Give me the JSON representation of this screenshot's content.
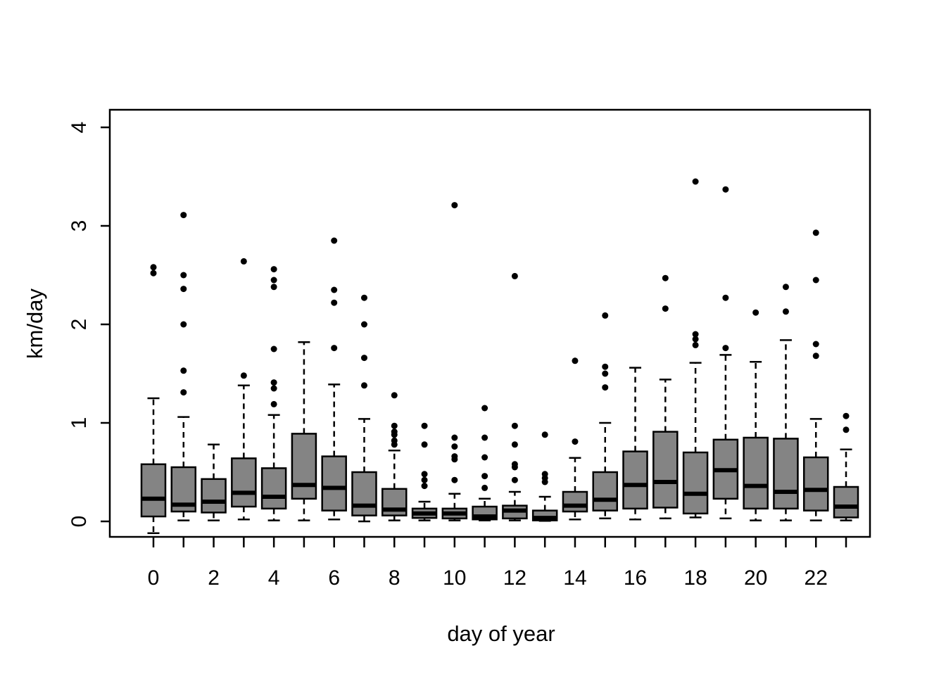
{
  "chart_data": {
    "type": "boxplot",
    "title": "",
    "xlabel": "day of year",
    "ylabel": "km/day",
    "y_ticks": [
      "0",
      "1",
      "2",
      "3",
      "4"
    ],
    "y_tick_values": [
      0,
      1,
      2,
      3,
      4
    ],
    "ylim": [
      -0.16,
      4.17
    ],
    "x_tick_labels": [
      "0",
      "2",
      "4",
      "6",
      "8",
      "10",
      "12",
      "14",
      "16",
      "18",
      "20",
      "22"
    ],
    "x_tick_label_positions": [
      0,
      2,
      4,
      6,
      8,
      10,
      12,
      14,
      16,
      18,
      20,
      22
    ],
    "grid": false,
    "legend": false,
    "background_color": "#ffffff",
    "line_color": "#000000",
    "box_fill_color": "#848484",
    "boxes": [
      {
        "category": "0",
        "whisker_low": -0.12,
        "q1": 0.05,
        "median": 0.23,
        "q3": 0.58,
        "whisker_high": 1.25,
        "outliers": [
          2.58,
          2.52
        ]
      },
      {
        "category": "1",
        "whisker_low": 0.01,
        "q1": 0.1,
        "median": 0.17,
        "q3": 0.55,
        "whisker_high": 1.06,
        "outliers": [
          3.11,
          2.5,
          2.36,
          2.0,
          1.53,
          1.31
        ]
      },
      {
        "category": "2",
        "whisker_low": 0.01,
        "q1": 0.09,
        "median": 0.2,
        "q3": 0.43,
        "whisker_high": 0.78,
        "outliers": []
      },
      {
        "category": "3",
        "whisker_low": 0.02,
        "q1": 0.15,
        "median": 0.29,
        "q3": 0.64,
        "whisker_high": 1.38,
        "outliers": [
          2.64,
          1.48
        ]
      },
      {
        "category": "4",
        "whisker_low": 0.01,
        "q1": 0.13,
        "median": 0.25,
        "q3": 0.54,
        "whisker_high": 1.08,
        "outliers": [
          2.56,
          2.45,
          2.38,
          1.75,
          1.41,
          1.35,
          1.19
        ]
      },
      {
        "category": "5",
        "whisker_low": 0.01,
        "q1": 0.23,
        "median": 0.37,
        "q3": 0.89,
        "whisker_high": 1.82,
        "outliers": []
      },
      {
        "category": "6",
        "whisker_low": 0.02,
        "q1": 0.11,
        "median": 0.34,
        "q3": 0.66,
        "whisker_high": 1.39,
        "outliers": [
          2.85,
          2.35,
          2.22,
          1.76
        ]
      },
      {
        "category": "7",
        "whisker_low": 0.0,
        "q1": 0.06,
        "median": 0.16,
        "q3": 0.5,
        "whisker_high": 1.04,
        "outliers": [
          2.27,
          2.0,
          1.66,
          1.38
        ]
      },
      {
        "category": "8",
        "whisker_low": 0.01,
        "q1": 0.06,
        "median": 0.12,
        "q3": 0.33,
        "whisker_high": 0.72,
        "outliers": [
          1.28,
          0.97,
          0.91,
          0.88,
          0.82,
          0.78
        ]
      },
      {
        "category": "9",
        "whisker_low": 0.01,
        "q1": 0.035,
        "median": 0.08,
        "q3": 0.13,
        "whisker_high": 0.2,
        "outliers": [
          0.97,
          0.78,
          0.48,
          0.42,
          0.36
        ]
      },
      {
        "category": "10",
        "whisker_low": 0.01,
        "q1": 0.03,
        "median": 0.08,
        "q3": 0.13,
        "whisker_high": 0.28,
        "outliers": [
          3.21,
          0.85,
          0.76,
          0.66,
          0.63,
          0.42
        ]
      },
      {
        "category": "11",
        "whisker_low": 0.01,
        "q1": 0.02,
        "median": 0.05,
        "q3": 0.15,
        "whisker_high": 0.23,
        "outliers": [
          1.15,
          0.85,
          0.65,
          0.46,
          0.34
        ]
      },
      {
        "category": "12",
        "whisker_low": 0.01,
        "q1": 0.03,
        "median": 0.11,
        "q3": 0.16,
        "whisker_high": 0.3,
        "outliers": [
          2.49,
          0.97,
          0.78,
          0.58,
          0.55,
          0.42
        ]
      },
      {
        "category": "13",
        "whisker_low": 0.005,
        "q1": 0.01,
        "median": 0.035,
        "q3": 0.11,
        "whisker_high": 0.25,
        "outliers": [
          0.88,
          0.48,
          0.44,
          0.4
        ]
      },
      {
        "category": "14",
        "whisker_low": 0.02,
        "q1": 0.1,
        "median": 0.16,
        "q3": 0.3,
        "whisker_high": 0.645,
        "outliers": [
          1.63,
          0.81
        ]
      },
      {
        "category": "15",
        "whisker_low": 0.03,
        "q1": 0.11,
        "median": 0.22,
        "q3": 0.5,
        "whisker_high": 1.0,
        "outliers": [
          2.09,
          1.57,
          1.5,
          1.36
        ]
      },
      {
        "category": "16",
        "whisker_low": 0.02,
        "q1": 0.13,
        "median": 0.37,
        "q3": 0.71,
        "whisker_high": 1.56,
        "outliers": []
      },
      {
        "category": "17",
        "whisker_low": 0.03,
        "q1": 0.14,
        "median": 0.4,
        "q3": 0.91,
        "whisker_high": 1.44,
        "outliers": [
          2.47,
          2.16
        ]
      },
      {
        "category": "18",
        "whisker_low": 0.04,
        "q1": 0.08,
        "median": 0.28,
        "q3": 0.7,
        "whisker_high": 1.61,
        "outliers": [
          3.45,
          1.9,
          1.85,
          1.79
        ]
      },
      {
        "category": "19",
        "whisker_low": 0.03,
        "q1": 0.23,
        "median": 0.52,
        "q3": 0.83,
        "whisker_high": 1.69,
        "outliers": [
          3.37,
          2.27,
          1.76
        ]
      },
      {
        "category": "20",
        "whisker_low": 0.01,
        "q1": 0.13,
        "median": 0.36,
        "q3": 0.85,
        "whisker_high": 1.62,
        "outliers": [
          2.12
        ]
      },
      {
        "category": "21",
        "whisker_low": 0.01,
        "q1": 0.13,
        "median": 0.3,
        "q3": 0.84,
        "whisker_high": 1.84,
        "outliers": [
          2.38,
          2.13
        ]
      },
      {
        "category": "22",
        "whisker_low": 0.01,
        "q1": 0.11,
        "median": 0.32,
        "q3": 0.65,
        "whisker_high": 1.04,
        "outliers": [
          2.93,
          2.45,
          1.8,
          1.68
        ]
      },
      {
        "category": "23",
        "whisker_low": 0.01,
        "q1": 0.04,
        "median": 0.15,
        "q3": 0.35,
        "whisker_high": 0.73,
        "outliers": [
          1.07,
          0.93
        ]
      }
    ]
  }
}
